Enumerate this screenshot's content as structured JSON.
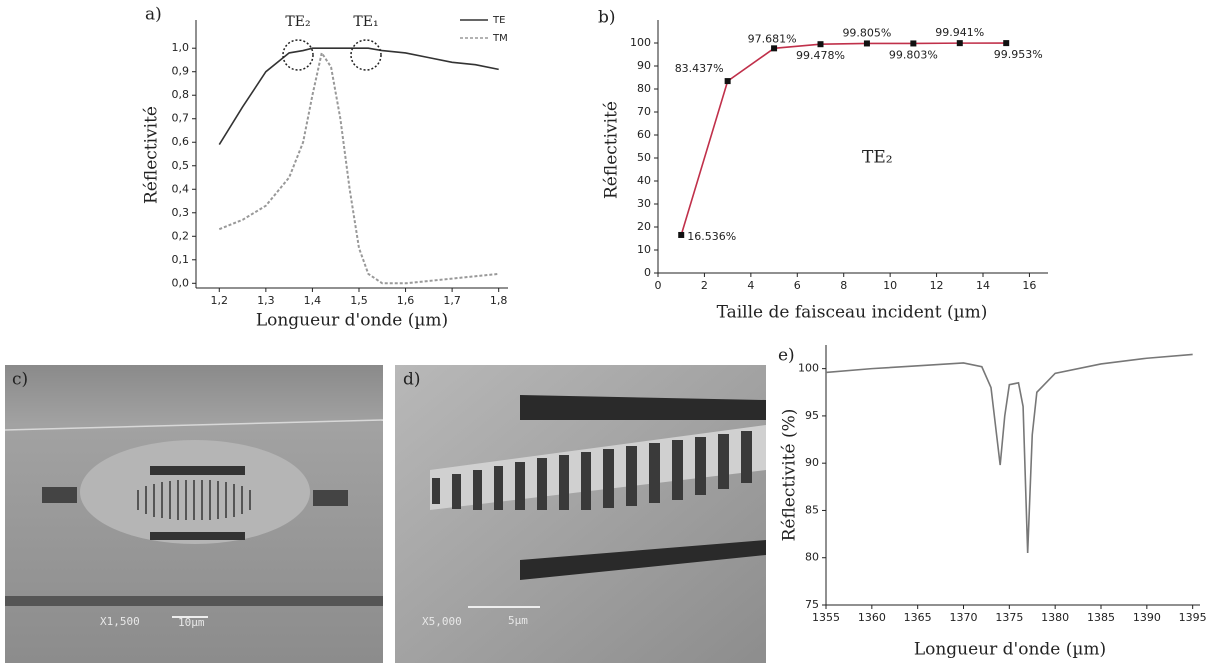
{
  "chart_data": [
    {
      "type": "line",
      "label": "a)",
      "x_label": "Longueur d'onde (µm)",
      "y_label": "Réflectivité",
      "x": [
        1.2,
        1.25,
        1.3,
        1.35,
        1.38,
        1.4,
        1.42,
        1.44,
        1.46,
        1.48,
        1.5,
        1.52,
        1.55,
        1.6,
        1.65,
        1.7,
        1.75,
        1.8
      ],
      "series": [
        {
          "name": "TE",
          "color": "#333333",
          "dash": false,
          "values": [
            0.59,
            0.75,
            0.9,
            0.98,
            0.99,
            1.0,
            1.0,
            1.0,
            1.0,
            1.0,
            1.0,
            1.0,
            0.99,
            0.98,
            0.96,
            0.94,
            0.93,
            0.91
          ]
        },
        {
          "name": "TM",
          "color": "#999999",
          "dash": true,
          "values": [
            0.23,
            0.27,
            0.33,
            0.45,
            0.6,
            0.8,
            0.98,
            0.92,
            0.7,
            0.4,
            0.15,
            0.04,
            0.0,
            0.0,
            0.01,
            0.02,
            0.03,
            0.04
          ]
        }
      ],
      "annotations": [
        "TE₂",
        "TE₁"
      ],
      "xlim": [
        1.15,
        1.82
      ],
      "xticks": [
        {
          "value": 1.2,
          "label": "1,2"
        },
        {
          "value": 1.3,
          "label": "1,3"
        },
        {
          "value": 1.4,
          "label": "1,4"
        },
        {
          "value": 1.5,
          "label": "1,5"
        },
        {
          "value": 1.6,
          "label": "1,6"
        },
        {
          "value": 1.7,
          "label": "1,7"
        },
        {
          "value": 1.8,
          "label": "1,8"
        }
      ],
      "ylim": [
        -0.02,
        1.12
      ],
      "yticks": [
        {
          "value": 0,
          "label": "0,0"
        },
        {
          "value": 0.1,
          "label": "0,1"
        },
        {
          "value": 0.2,
          "label": "0,2"
        },
        {
          "value": 0.3,
          "label": "0,3"
        },
        {
          "value": 0.4,
          "label": "0,4"
        },
        {
          "value": 0.5,
          "label": "0,5"
        },
        {
          "value": 0.6,
          "label": "0,6"
        },
        {
          "value": 0.7,
          "label": "0,7"
        },
        {
          "value": 0.8,
          "label": "0,8"
        },
        {
          "value": 0.9,
          "label": "0,9"
        },
        {
          "value": 1.0,
          "label": "1,0"
        }
      ],
      "legend": "top-right"
    },
    {
      "type": "line",
      "label": "b)",
      "x_label": "Taille de faisceau incident (µm)",
      "y_label": "Réflectivité",
      "x": [
        1,
        3,
        5,
        7,
        9,
        11,
        13,
        15
      ],
      "series": [
        {
          "color": "#c0304a",
          "marker": "square",
          "values": [
            16.536,
            83.437,
            97.681,
            99.478,
            99.805,
            99.803,
            99.941,
            99.953
          ],
          "value_labels": [
            "16.536%",
            "83.437%",
            "97.681%",
            "99.478%",
            "99.805%",
            "99.803%",
            "99.941%",
            "99.953%"
          ]
        }
      ],
      "annotations": [
        "TE₂"
      ],
      "xlim": [
        0,
        16.8
      ],
      "xticks": [
        0,
        2,
        4,
        6,
        8,
        10,
        12,
        14,
        16
      ],
      "ylim": [
        0,
        110
      ],
      "yticks": [
        0,
        10,
        20,
        30,
        40,
        50,
        60,
        70,
        80,
        90,
        100
      ]
    },
    {
      "type": "line",
      "label": "e)",
      "x_label": "Longueur d'onde (µm)",
      "y_label": "Réflectivité (%)",
      "x": [
        1355,
        1360,
        1365,
        1370,
        1372,
        1373,
        1374,
        1374.5,
        1375,
        1376,
        1376.5,
        1377,
        1377.5,
        1378,
        1380,
        1385,
        1390,
        1395
      ],
      "series": [
        {
          "color": "#777777",
          "values": [
            99.6,
            100.0,
            100.3,
            100.6,
            100.2,
            98.0,
            89.8,
            95.0,
            98.3,
            98.5,
            96.0,
            80.5,
            93.0,
            97.5,
            99.5,
            100.5,
            101.1,
            101.5
          ]
        }
      ],
      "xlim": [
        1355,
        1395.8
      ],
      "xticks": [
        1355,
        1360,
        1365,
        1370,
        1375,
        1380,
        1385,
        1390,
        1395
      ],
      "ylim": [
        75,
        102.5
      ],
      "yticks": [
        75,
        80,
        85,
        90,
        95,
        100
      ]
    }
  ],
  "images": [
    {
      "label": "c)",
      "magnification": "X1,500",
      "scale": "10µm"
    },
    {
      "label": "d)",
      "magnification": "X5,000",
      "scale": "5µm"
    }
  ]
}
